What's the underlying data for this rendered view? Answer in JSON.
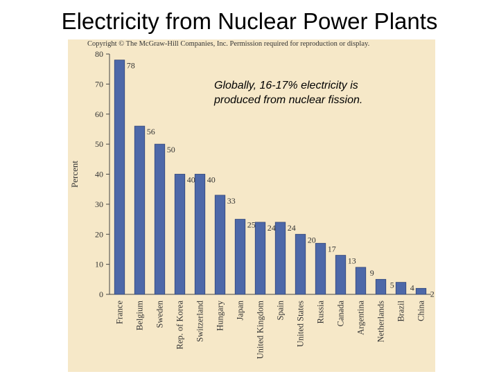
{
  "slide": {
    "title": "Electricity from Nuclear Power Plants",
    "copyright": "Copyright © The McGraw-Hill Companies, Inc. Permission required for reproduction or display.",
    "annotation_line1": "Globally, 16-17% electricity is",
    "annotation_line2": "produced from nuclear fission."
  },
  "colors": {
    "panel": "#f6e8c8",
    "bar": "#4d68a8",
    "bar_edge": "#2f4478",
    "text": "#333333"
  },
  "chart_data": {
    "type": "bar",
    "title": "",
    "xlabel": "",
    "ylabel": "Percent",
    "ylim": [
      0,
      80
    ],
    "yticks": [
      0,
      10,
      20,
      30,
      40,
      50,
      60,
      70,
      80
    ],
    "grid": false,
    "categories": [
      "France",
      "Belgium",
      "Sweden",
      "Rep. of Korea",
      "Switzerland",
      "Hungary",
      "Japan",
      "United Kingdom",
      "Spain",
      "United States",
      "Russia",
      "Canada",
      "Argentina",
      "Netherlands",
      "Brazil",
      "China"
    ],
    "values": [
      78,
      56,
      50,
      40,
      40,
      33,
      25,
      24,
      24,
      20,
      17,
      13,
      9,
      5,
      4,
      2
    ]
  }
}
